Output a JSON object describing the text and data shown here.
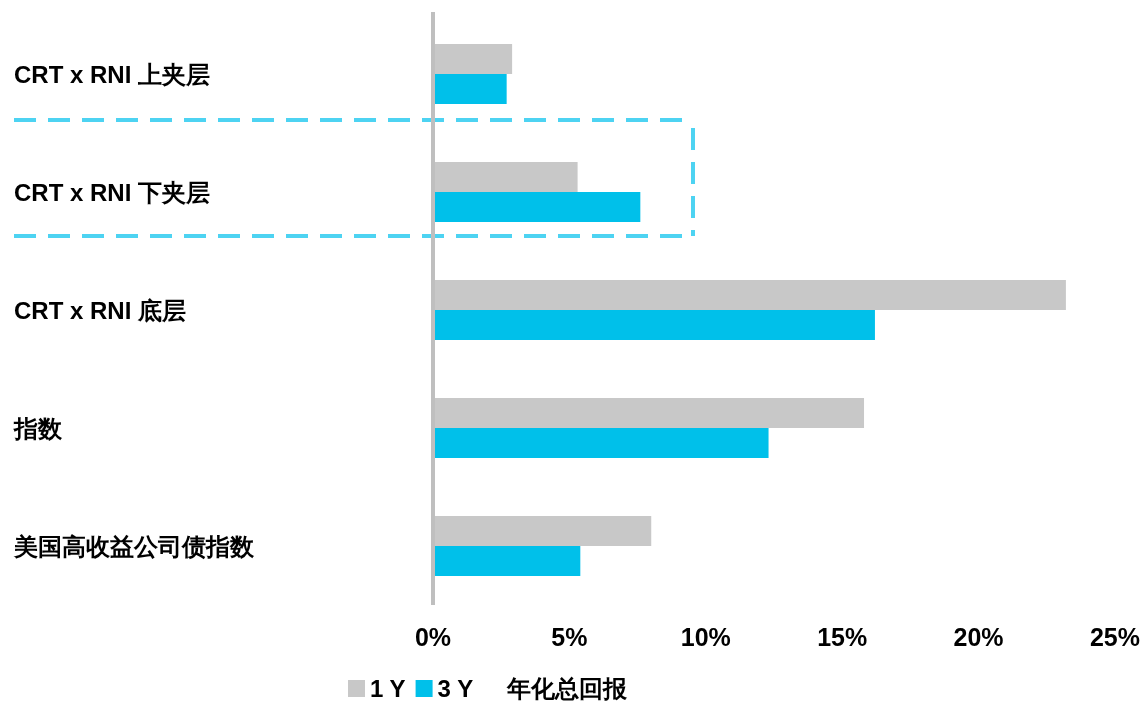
{
  "chart_data": {
    "type": "bar",
    "orientation": "horizontal",
    "categories": [
      "CRT x RNI 上夹层",
      "CRT x RNI 下夹层",
      "CRT x RNI 底层",
      "指数",
      "美国高收益公司债指数"
    ],
    "series": [
      {
        "name": "1 Y",
        "color": "#c8c8c8",
        "values": [
          2.9,
          5.3,
          23.2,
          15.8,
          8.0
        ]
      },
      {
        "name": "3 Y",
        "color": "#00c0ea",
        "values": [
          2.7,
          7.6,
          16.2,
          12.3,
          5.4
        ]
      }
    ],
    "xlim": [
      0,
      25
    ],
    "xticks": [
      {
        "value": 0,
        "label": "0%"
      },
      {
        "value": 5,
        "label": "5%"
      },
      {
        "value": 10,
        "label": "10%"
      },
      {
        "value": 15,
        "label": "15%"
      },
      {
        "value": 20,
        "label": "20%"
      },
      {
        "value": 25,
        "label": "25%"
      }
    ],
    "legend": "bottom",
    "legend_title": "年化总回报",
    "grid": false
  }
}
